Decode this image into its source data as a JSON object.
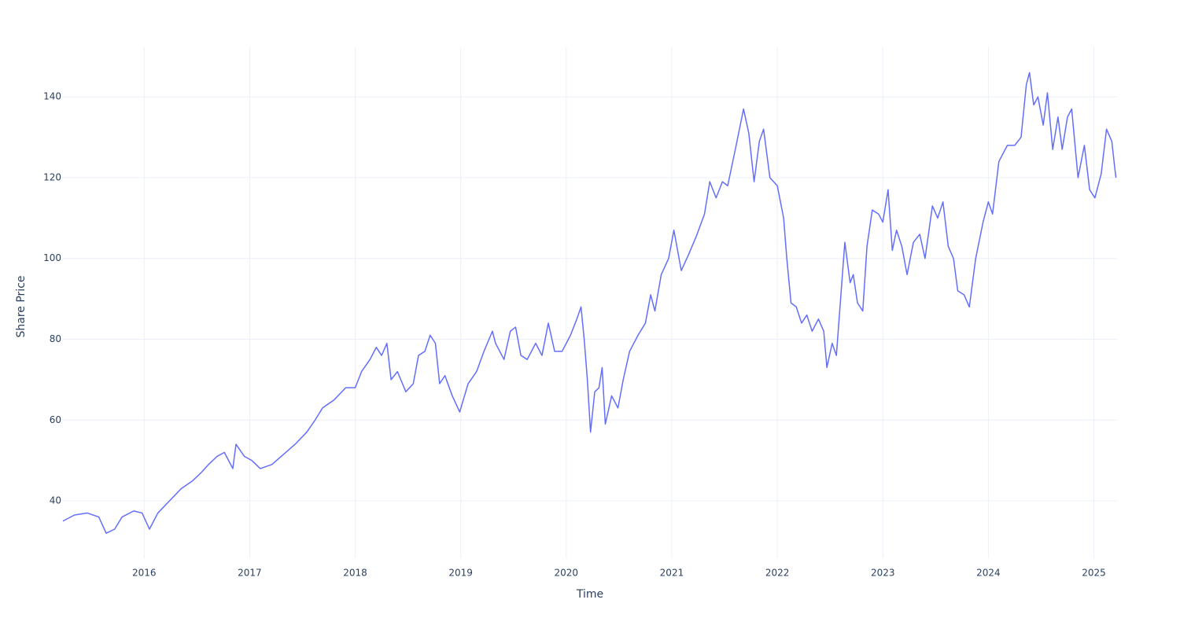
{
  "chart_data": {
    "type": "line",
    "xlabel": "Time",
    "ylabel": "Share Price",
    "x": [
      2015.23,
      2015.34,
      2015.46,
      2015.57,
      2015.64,
      2015.72,
      2015.79,
      2015.9,
      2015.98,
      2016.05,
      2016.13,
      2016.24,
      2016.35,
      2016.46,
      2016.54,
      2016.61,
      2016.69,
      2016.76,
      2016.84,
      2016.87,
      2016.95,
      2017.02,
      2017.1,
      2017.21,
      2017.32,
      2017.43,
      2017.54,
      2017.62,
      2017.69,
      2017.8,
      2017.91,
      2018.0,
      2018.06,
      2018.14,
      2018.2,
      2018.25,
      2018.3,
      2018.34,
      2018.4,
      2018.48,
      2018.55,
      2018.6,
      2018.66,
      2018.71,
      2018.76,
      2018.8,
      2018.85,
      2018.92,
      2018.99,
      2019.07,
      2019.15,
      2019.22,
      2019.3,
      2019.33,
      2019.41,
      2019.47,
      2019.52,
      2019.57,
      2019.63,
      2019.71,
      2019.77,
      2019.83,
      2019.89,
      2019.96,
      2020.04,
      2020.1,
      2020.14,
      2020.17,
      2020.2,
      2020.23,
      2020.27,
      2020.31,
      2020.34,
      2020.37,
      2020.43,
      2020.49,
      2020.54,
      2020.6,
      2020.68,
      2020.75,
      2020.8,
      2020.84,
      2020.9,
      2020.97,
      2021.02,
      2021.09,
      2021.16,
      2021.24,
      2021.31,
      2021.36,
      2021.42,
      2021.48,
      2021.53,
      2021.61,
      2021.68,
      2021.73,
      2021.78,
      2021.83,
      2021.87,
      2021.93,
      2022.0,
      2022.06,
      2022.09,
      2022.13,
      2022.18,
      2022.23,
      2022.28,
      2022.33,
      2022.39,
      2022.44,
      2022.47,
      2022.52,
      2022.56,
      2022.6,
      2022.64,
      2022.69,
      2022.72,
      2022.76,
      2022.81,
      2022.85,
      2022.9,
      2022.96,
      2023.0,
      2023.05,
      2023.09,
      2023.13,
      2023.18,
      2023.23,
      2023.29,
      2023.35,
      2023.4,
      2023.47,
      2023.52,
      2023.57,
      2023.62,
      2023.67,
      2023.71,
      2023.77,
      2023.82,
      2023.88,
      2023.95,
      2024.0,
      2024.04,
      2024.1,
      2024.18,
      2024.25,
      2024.31,
      2024.36,
      2024.39,
      2024.43,
      2024.47,
      2024.52,
      2024.56,
      2024.61,
      2024.66,
      2024.7,
      2024.75,
      2024.79,
      2024.85,
      2024.91,
      2024.96,
      2025.01,
      2025.07,
      2025.12,
      2025.17,
      2025.2,
      2025.21
    ],
    "values": [
      35,
      36.5,
      37,
      36,
      32,
      33,
      36,
      37.5,
      37,
      33,
      37,
      40,
      43,
      45,
      47,
      49,
      51,
      52,
      48,
      54,
      51,
      50,
      48,
      49,
      51.5,
      54,
      57,
      60,
      63,
      65,
      68,
      68,
      72,
      75,
      78,
      76,
      79,
      70,
      72,
      67,
      69,
      76,
      77,
      81,
      79,
      69,
      71,
      66,
      62,
      69,
      72,
      77,
      82,
      79,
      75,
      82,
      83,
      76,
      75,
      79,
      76,
      84,
      77,
      77,
      81,
      85,
      88,
      80,
      70,
      57,
      67,
      68,
      73,
      59,
      66,
      63,
      70,
      77,
      81,
      84,
      91,
      87,
      96,
      100,
      107,
      97,
      101,
      106,
      111,
      119,
      115,
      119,
      118,
      128,
      137,
      131,
      119,
      129,
      132,
      120,
      118,
      110,
      100,
      89,
      88,
      84,
      86,
      82,
      85,
      82,
      73,
      79,
      76,
      90,
      104,
      94,
      96,
      89,
      87,
      103,
      112,
      111,
      109,
      117,
      102,
      107,
      103,
      96,
      104,
      106,
      100,
      113,
      110,
      114,
      103,
      100,
      92,
      91,
      88,
      100,
      109,
      114,
      111,
      124,
      128,
      128,
      130,
      143,
      146,
      138,
      140,
      133,
      141,
      127,
      135,
      127,
      135,
      137,
      120,
      128,
      117,
      115,
      121,
      132,
      129,
      122,
      120
    ],
    "color": "#636efa",
    "xlim": [
      2015.23,
      2025.22
    ],
    "xticks": [
      2016,
      2017,
      2018,
      2019,
      2020,
      2021,
      2022,
      2023,
      2024,
      2025
    ],
    "ylim": [
      25.8,
      152.3
    ],
    "yticks": [
      40,
      60,
      80,
      100,
      120,
      140
    ],
    "grid": true
  }
}
